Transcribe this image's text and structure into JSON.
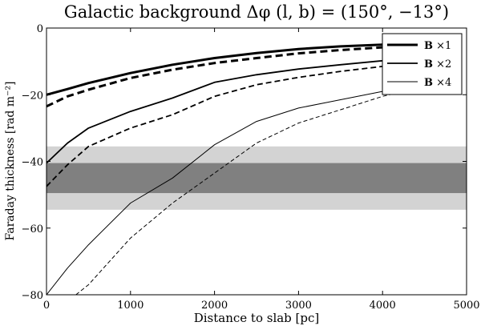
{
  "chart_data": {
    "type": "line",
    "title": "Galactic background Δφ (l, b) = (150°, −13°)",
    "xlabel": "Distance to slab [pc]",
    "ylabel": "Faraday thickness [rad m⁻²]",
    "xlim": [
      0,
      5000
    ],
    "ylim": [
      -80,
      0
    ],
    "xticks": [
      0,
      1000,
      2000,
      3000,
      4000,
      5000
    ],
    "yticks": [
      -80,
      -60,
      -40,
      -20,
      0
    ],
    "grid": false,
    "legend_position": "top-right",
    "bands": [
      {
        "y0": -54.5,
        "y1": -35.5,
        "color": "#d3d3d3"
      },
      {
        "y0": -49.5,
        "y1": -40.5,
        "color": "#808080"
      }
    ],
    "series": [
      {
        "name": "B ×1",
        "style": "solid",
        "width": 3,
        "legend": true,
        "x": [
          0,
          250,
          500,
          1000,
          1500,
          2000,
          2500,
          3000,
          3500,
          4000,
          4500
        ],
        "y": [
          -20,
          -18.3,
          -16.5,
          -13.5,
          -11,
          -9,
          -7.5,
          -6.3,
          -5.5,
          -5,
          -4.7
        ]
      },
      {
        "name": "",
        "style": "dashed",
        "width": 3,
        "legend": false,
        "x": [
          0,
          250,
          500,
          1000,
          1500,
          2000,
          2500,
          3000,
          3500,
          4000,
          4500
        ],
        "y": [
          -23.5,
          -20.5,
          -18.5,
          -15,
          -12.5,
          -10.5,
          -9,
          -7.6,
          -6.6,
          -5.8,
          -5.2
        ]
      },
      {
        "name": "B ×2",
        "style": "solid",
        "width": 1.8,
        "legend": true,
        "x": [
          0,
          250,
          500,
          1000,
          1500,
          2000,
          2500,
          3000,
          3500,
          4000,
          4500
        ],
        "y": [
          -40.5,
          -34.5,
          -30,
          -25,
          -21,
          -16.3,
          -14,
          -12.3,
          -11,
          -9.8,
          -9
        ]
      },
      {
        "name": "",
        "style": "dashed",
        "width": 1.8,
        "legend": false,
        "x": [
          0,
          250,
          500,
          1000,
          1500,
          2000,
          2500,
          3000,
          3500,
          4000,
          4500
        ],
        "y": [
          -47.5,
          -41,
          -35.5,
          -30,
          -26,
          -20.5,
          -17,
          -14.8,
          -13,
          -11.5,
          -10.5
        ]
      },
      {
        "name": "B ×4",
        "style": "solid",
        "width": 1,
        "legend": true,
        "x": [
          0,
          250,
          500,
          1000,
          1500,
          2000,
          2500,
          3000,
          3500,
          4000,
          4500
        ],
        "y": [
          -80,
          -72,
          -65,
          -52.5,
          -45,
          -35,
          -28,
          -24,
          -21.5,
          -19,
          -16.5
        ]
      },
      {
        "name": "",
        "style": "dashed",
        "width": 1,
        "legend": false,
        "x": [
          350,
          500,
          1000,
          1500,
          2000,
          2500,
          3000,
          3500,
          4000,
          4500
        ],
        "y": [
          -80,
          -77,
          -63,
          -52.5,
          -43.5,
          -34.5,
          -28.5,
          -24.5,
          -20.5,
          -17.5
        ]
      }
    ]
  }
}
